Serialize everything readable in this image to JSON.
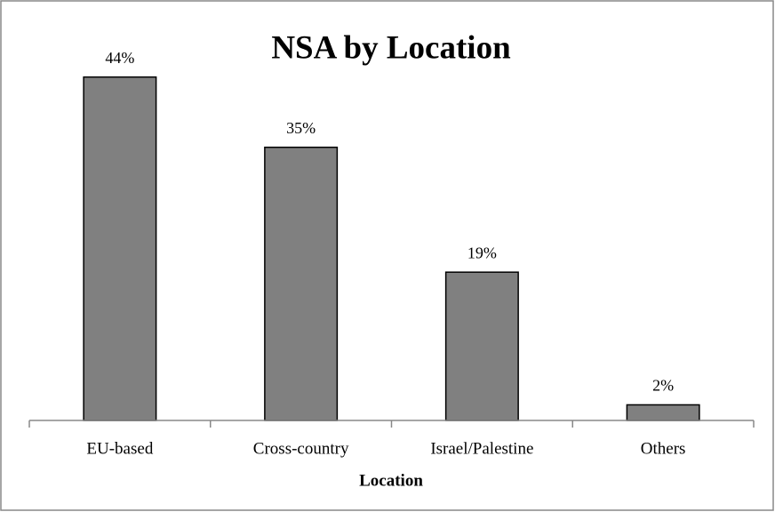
{
  "chart_data": {
    "type": "bar",
    "title": "NSA by Location",
    "x_label": "Location",
    "categories": [
      "EU-based",
      "Cross-country",
      "Israel/Palestine",
      "Others"
    ],
    "values": [
      44,
      35,
      19,
      2
    ],
    "value_labels": [
      "44%",
      "35%",
      "19%",
      "2%"
    ],
    "color": "#808080",
    "ylim": [
      0,
      50
    ]
  }
}
